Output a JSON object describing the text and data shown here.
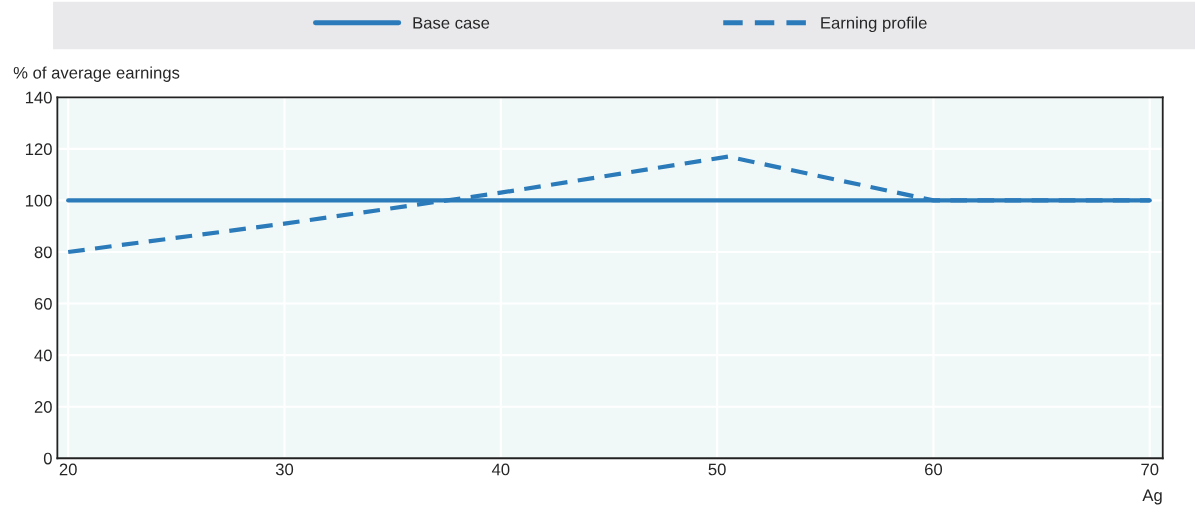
{
  "chart_data": {
    "type": "line",
    "ylabel": "% of average earnings",
    "xlabel": "Ag",
    "series": [
      {
        "name": "Base case",
        "color": "#2b7bba",
        "line_style": "solid",
        "x": [
          20,
          70
        ],
        "values": [
          100,
          100
        ]
      },
      {
        "name": "Earning profile",
        "color": "#2b7bba",
        "line_style": "dashed",
        "x": [
          20,
          30,
          40,
          50.5,
          60,
          70
        ],
        "values": [
          80,
          91,
          103,
          117,
          100,
          100
        ]
      }
    ],
    "xlim": [
      19.5,
      70.6
    ],
    "xticks": [
      20,
      30,
      40,
      50,
      60,
      70
    ],
    "ylim": [
      0,
      140
    ],
    "yticks": [
      0,
      20,
      40,
      60,
      80,
      100,
      120,
      140
    ],
    "grid": true,
    "legend": "top",
    "marker": "none"
  }
}
